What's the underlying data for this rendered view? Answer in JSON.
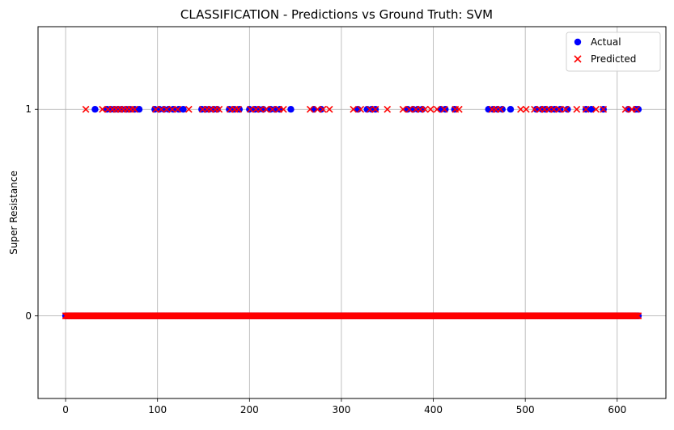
{
  "chart_data": {
    "type": "scatter",
    "title": "CLASSIFICATION - Predictions vs Ground Truth: SVM",
    "xlabel": "",
    "ylabel": "Super Resistance",
    "xlim": [
      -30,
      653
    ],
    "ylim": [
      -0.4,
      1.4
    ],
    "x_ticks": [
      0,
      100,
      200,
      300,
      400,
      500,
      600
    ],
    "y_ticks": [
      0,
      1
    ],
    "grid": true,
    "legend": {
      "position": "top-right",
      "entries": [
        "Actual",
        "Predicted"
      ]
    },
    "colors": {
      "actual": "#0000ff",
      "predicted": "#ff0000",
      "grid": "#b0b0b0"
    },
    "series": [
      {
        "name": "Actual",
        "marker": "circle",
        "x_range": [
          0,
          623
        ],
        "y_class1_x": [
          32,
          45,
          49,
          53,
          57,
          61,
          66,
          70,
          75,
          80,
          97,
          102,
          107,
          112,
          117,
          123,
          128,
          148,
          152,
          156,
          161,
          165,
          178,
          183,
          189,
          200,
          206,
          210,
          215,
          223,
          228,
          233,
          245,
          270,
          278,
          318,
          328,
          333,
          337,
          372,
          378,
          383,
          388,
          408,
          413,
          423,
          460,
          465,
          470,
          475,
          484,
          512,
          518,
          522,
          528,
          532,
          538,
          546,
          566,
          572,
          585,
          612,
          620,
          623
        ],
        "note": "class 0 covers the full x range"
      },
      {
        "name": "Predicted",
        "marker": "x",
        "x_range": [
          0,
          623
        ],
        "y_class1_x": [
          22,
          40,
          46,
          51,
          55,
          59,
          63,
          67,
          71,
          75,
          98,
          104,
          110,
          116,
          122,
          134,
          149,
          154,
          158,
          163,
          167,
          179,
          184,
          188,
          201,
          207,
          212,
          218,
          225,
          232,
          237,
          266,
          274,
          280,
          287,
          313,
          321,
          331,
          337,
          350,
          367,
          374,
          381,
          386,
          391,
          397,
          404,
          412,
          424,
          428,
          464,
          468,
          473,
          495,
          501,
          510,
          516,
          521,
          526,
          531,
          537,
          544,
          556,
          566,
          577,
          585,
          609,
          616,
          621
        ],
        "note": "class 0 covers the full x range"
      }
    ]
  }
}
